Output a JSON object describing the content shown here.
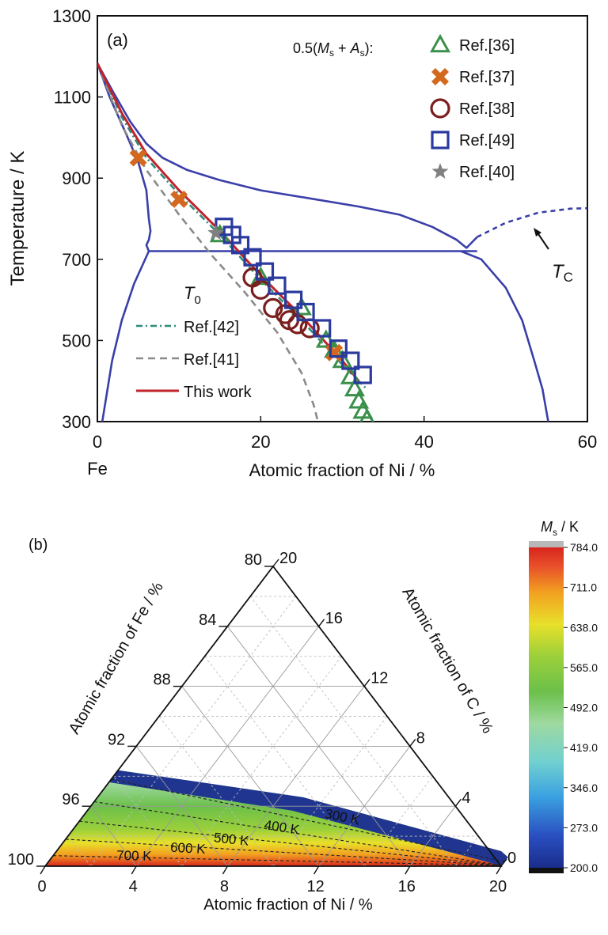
{
  "chart_data": [
    {
      "panel_label": "(a)",
      "type": "line",
      "xlabel": "Atomic fraction of Ni / %",
      "ylabel": "Temperature / K",
      "xlim": [
        0,
        60
      ],
      "ylim": [
        300,
        1300
      ],
      "x_ticks": [
        "0",
        "20",
        "40",
        "60"
      ],
      "y_ticks": [
        "300",
        "500",
        "700",
        "900",
        "1100",
        "1300"
      ],
      "x_origin_label": "Fe",
      "tc_label": "T",
      "tc_sub": "C",
      "legend_markers_title": "0.5(Mₛ + Aₛ):",
      "legend_markers_title_parts": {
        "a": "0.5(",
        "m": "M",
        "s1": "s",
        "plus": " + ",
        "as": "A",
        "s2": "s",
        "end": "):"
      },
      "legend_lines_title": "T",
      "legend_lines_sub": "0",
      "phase_lines": {
        "liquidus_alpha": [
          [
            0,
            1183
          ],
          [
            2,
            1110
          ],
          [
            4,
            1040
          ],
          [
            6,
            985
          ],
          [
            8,
            950
          ],
          [
            11,
            920
          ],
          [
            15,
            895
          ],
          [
            20,
            870
          ],
          [
            26,
            850
          ],
          [
            32,
            830
          ],
          [
            37,
            810
          ],
          [
            41,
            780
          ],
          [
            44,
            748
          ],
          [
            45.2,
            728
          ],
          [
            46.5,
            755
          ]
        ],
        "solvus_alpha_left": [
          [
            0,
            1183
          ],
          [
            1.5,
            1100
          ],
          [
            3.5,
            1010
          ],
          [
            5,
            940
          ],
          [
            6,
            870
          ],
          [
            6.3,
            800
          ],
          [
            6.5,
            770
          ],
          [
            6.3,
            748
          ],
          [
            6,
            735
          ],
          [
            6.3,
            720
          ]
        ],
        "alpha_low": [
          [
            6.3,
            720
          ],
          [
            4.5,
            640
          ],
          [
            3,
            550
          ],
          [
            1.8,
            450
          ],
          [
            0.6,
            300
          ]
        ],
        "gamma_right": [
          [
            44.5,
            720
          ],
          [
            47,
            700
          ],
          [
            50,
            630
          ],
          [
            52,
            550
          ],
          [
            53.5,
            450
          ],
          [
            54.5,
            380
          ],
          [
            55.2,
            300
          ]
        ],
        "eutectoid_line": [
          [
            6.3,
            720
          ],
          [
            46.5,
            720
          ]
        ],
        "curie_dashed": [
          [
            46.5,
            755
          ],
          [
            50,
            790
          ],
          [
            54,
            815
          ],
          [
            58,
            825
          ],
          [
            60,
            826
          ]
        ]
      },
      "series": [
        {
          "name": "Ref.[42]",
          "style": "dash-dot",
          "color": "#2e8b7a",
          "points": [
            [
              0,
              1183
            ],
            [
              3,
              1050
            ],
            [
              6,
              950
            ],
            [
              10,
              860
            ],
            [
              15,
              760
            ],
            [
              20,
              650
            ],
            [
              25,
              550
            ],
            [
              30,
              440
            ],
            [
              33,
              380
            ]
          ]
        },
        {
          "name": "Ref.[41]",
          "style": "dashed",
          "color": "#8a8a8a",
          "points": [
            [
              0,
              1183
            ],
            [
              3,
              1030
            ],
            [
              6,
              920
            ],
            [
              10,
              810
            ],
            [
              14,
              710
            ],
            [
              18,
              620
            ],
            [
              22,
              520
            ],
            [
              25,
              420
            ],
            [
              26.5,
              340
            ],
            [
              27,
              300
            ]
          ]
        },
        {
          "name": "This work",
          "style": "solid",
          "color": "#c0232a",
          "points": [
            [
              0,
              1183
            ],
            [
              3,
              1060
            ],
            [
              6,
              960
            ],
            [
              10,
              870
            ],
            [
              15,
              770
            ],
            [
              20,
              660
            ],
            [
              25,
              560
            ],
            [
              30,
              450
            ],
            [
              32,
              400
            ]
          ]
        }
      ],
      "markers": [
        {
          "name": "Ref.[36]",
          "shape": "triangle",
          "color": "#3a8f4a",
          "points": [
            [
              15,
              760
            ],
            [
              20,
              655
            ],
            [
              25,
              580
            ],
            [
              28,
              500
            ],
            [
              29,
              475
            ],
            [
              30,
              450
            ],
            [
              31,
              410
            ],
            [
              31.5,
              380
            ],
            [
              32,
              350
            ],
            [
              32.5,
              325
            ],
            [
              33,
              305
            ]
          ]
        },
        {
          "name": "Ref.[37]",
          "shape": "x",
          "color": "#d2691e",
          "points": [
            [
              5,
              950
            ],
            [
              10,
              848
            ],
            [
              29,
              470
            ]
          ]
        },
        {
          "name": "Ref.[38]",
          "shape": "circle",
          "color": "#7a1e1e",
          "points": [
            [
              19,
              655
            ],
            [
              20,
              625
            ],
            [
              21.5,
              580
            ],
            [
              23,
              565
            ],
            [
              23.5,
              550
            ],
            [
              24.5,
              540
            ],
            [
              26,
              530
            ]
          ]
        },
        {
          "name": "Ref.[49]",
          "shape": "square",
          "color": "#2b3a9e",
          "points": [
            [
              15.5,
              780
            ],
            [
              16.5,
              760
            ],
            [
              17.5,
              735
            ],
            [
              19,
              705
            ],
            [
              20.5,
              670
            ],
            [
              22,
              635
            ],
            [
              24,
              600
            ],
            [
              25.5,
              570
            ],
            [
              27.5,
              530
            ],
            [
              29.5,
              480
            ],
            [
              31,
              450
            ],
            [
              32.5,
              415
            ]
          ]
        },
        {
          "name": "Ref.[40]",
          "shape": "star",
          "color": "#808080",
          "points": [
            [
              14.5,
              765
            ]
          ]
        }
      ]
    },
    {
      "panel_label": "(b)",
      "type": "heatmap",
      "subtype": "ternary-contour",
      "bottom_axis_label": "Atomic fraction of Ni / %",
      "left_axis_label": "Atomic fraction of Fe / %",
      "right_axis_label": "Atomic fraction of C / %",
      "bottom_ticks": [
        "0",
        "4",
        "8",
        "12",
        "16",
        "20"
      ],
      "left_ticks": [
        "100",
        "96",
        "92",
        "88",
        "84",
        "80"
      ],
      "right_ticks": [
        "0",
        "4",
        "8",
        "12",
        "16",
        "20"
      ],
      "colorbar_title": "M",
      "colorbar_sub": "s",
      "colorbar_unit": " / K",
      "colorbar_ticks": [
        "784.0",
        "711.0",
        "638.0",
        "565.0",
        "492.0",
        "419.0",
        "346.0",
        "273.0",
        "200.0"
      ],
      "colorbar_range": [
        200,
        784
      ],
      "colors": [
        "#1a2d8c",
        "#2a4fc0",
        "#3aa0e0",
        "#70d0d0",
        "#9ed9a0",
        "#6cc04a",
        "#9bd03a",
        "#e8e02a",
        "#f2a020",
        "#e8502a",
        "#d8261e"
      ],
      "contour_labels": [
        "300 K",
        "400 K",
        "500 K",
        "600 K",
        "700 K"
      ],
      "contours": [
        {
          "label": "300 K",
          "value": 300,
          "c_at_ni0": 5.8,
          "c_at_ni20": 0.3
        },
        {
          "label": "400 K",
          "value": 400,
          "c_at_ni0": 4.3,
          "c_at_ni20": 0
        },
        {
          "label": "500 K",
          "value": 500,
          "c_at_ni0": 3.0,
          "c_at_ni20": 0
        },
        {
          "label": "600 K",
          "value": 600,
          "c_at_ni0": 1.8,
          "c_at_ni20": 0
        },
        {
          "label": "700 K",
          "value": 700,
          "c_at_ni0": 0.7,
          "c_at_ni20": 0
        }
      ]
    }
  ]
}
